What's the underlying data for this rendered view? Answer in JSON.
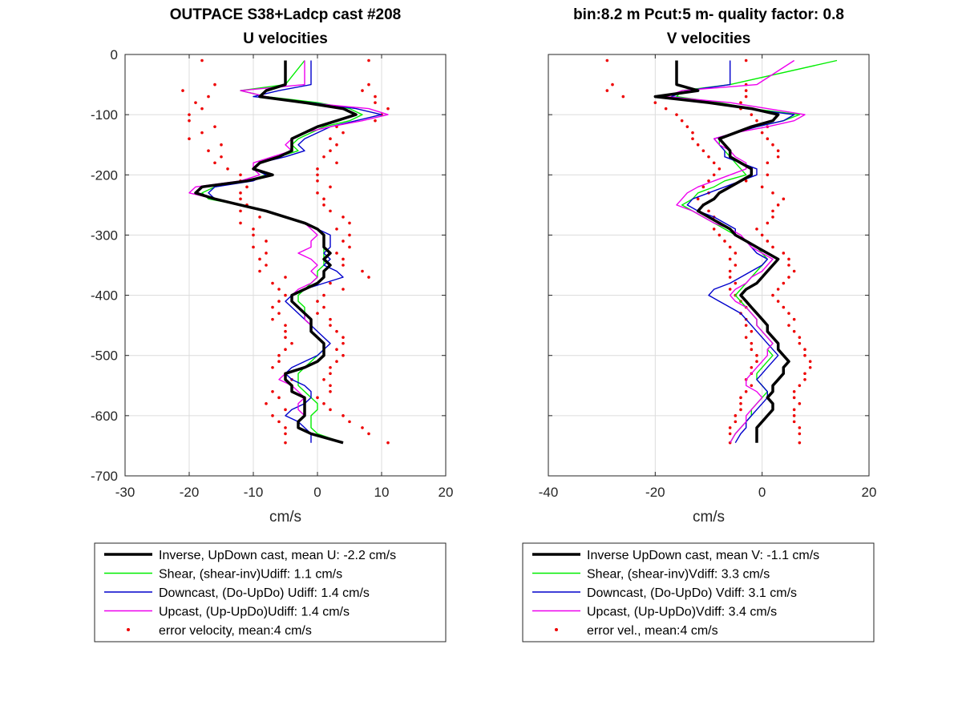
{
  "colors": {
    "inverse": "#000000",
    "shear": "#00ee00",
    "downcast": "#0000cc",
    "upcast": "#ee00ee",
    "error": "#ee0000"
  },
  "chart_data": [
    {
      "type": "line",
      "title": "OUTPACE S38+Ladcp cast #208",
      "subtitle": "U velocities",
      "xlabel": "cm/s",
      "ylabel": "",
      "xlim": [
        -30,
        20
      ],
      "ylim": [
        -700,
        0
      ],
      "xticks": [
        "-30",
        "-20",
        "-10",
        "0",
        "10",
        "20"
      ],
      "yticks": [
        "0",
        "-100",
        "-200",
        "-300",
        "-400",
        "-500",
        "-600",
        "-700"
      ],
      "grid": true,
      "legend_position": "bottom",
      "legend": [
        "Inverse, UpDown cast, mean U:  -2.2 cm/s",
        "Shear, (shear-inv)Udiff:  1.1 cm/s",
        "Downcast, (Do-UpDo) Udiff:  1.4 cm/s",
        "Upcast, (Up-UpDo)Udiff:  1.4 cm/s",
        "error velocity, mean:4 cm/s"
      ],
      "depth": [
        -10,
        -50,
        -60,
        -70,
        -80,
        -90,
        -100,
        -110,
        -120,
        -130,
        -140,
        -150,
        -160,
        -170,
        -180,
        -190,
        -200,
        -210,
        -220,
        -230,
        -240,
        -250,
        -260,
        -270,
        -280,
        -290,
        -300,
        -310,
        -320,
        -330,
        -340,
        -350,
        -360,
        -370,
        -380,
        -390,
        -400,
        -410,
        -420,
        -430,
        -440,
        -450,
        -460,
        -470,
        -480,
        -490,
        -500,
        -510,
        -520,
        -530,
        -540,
        -550,
        -560,
        -570,
        -580,
        -590,
        -600,
        -610,
        -620,
        -630,
        -645
      ],
      "series": [
        {
          "name": "Inverse",
          "x": [
            -5,
            -5,
            -8,
            -9,
            -2,
            4,
            6,
            3,
            0,
            -2,
            -4,
            -4,
            -4,
            -6,
            -9,
            -10,
            -7,
            -11,
            -18,
            -19,
            -16,
            -12,
            -8,
            -5,
            -2,
            0,
            1,
            1,
            1,
            2,
            1,
            2,
            1,
            1,
            0,
            -2,
            -4,
            -4,
            -3,
            -2,
            -1,
            -1,
            -1,
            0,
            1,
            1,
            1,
            0,
            -2,
            -5,
            -5,
            -4,
            -4,
            -2,
            -2,
            -2,
            -2,
            -3,
            -3,
            -1,
            4
          ]
        },
        {
          "name": "Shear",
          "x": [
            -2,
            -5,
            -12,
            -8,
            0,
            5,
            7,
            5,
            1,
            -1,
            -3,
            -4,
            -3,
            -6,
            -9,
            -10,
            -8,
            -11,
            -16,
            -18,
            -17,
            -12,
            -8,
            -5,
            -2,
            0,
            1,
            1,
            1,
            1,
            1,
            1,
            0,
            0,
            -1,
            -2,
            -3,
            -3,
            -2,
            -2,
            -2,
            -1,
            -1,
            0,
            1,
            1,
            0,
            -1,
            -2,
            -3,
            -3,
            -3,
            -2,
            -1,
            0,
            0,
            -1,
            -1,
            -1,
            0,
            4
          ]
        },
        {
          "name": "Downcast",
          "x": [
            -1,
            -1,
            -6,
            -10,
            -1,
            6,
            10,
            6,
            2,
            0,
            -2,
            -3,
            -2,
            -5,
            -9,
            -10,
            -8,
            -10,
            -16,
            -17,
            -16,
            -12,
            -8,
            -5,
            -2,
            0,
            2,
            2,
            2,
            1,
            2,
            1,
            3,
            4,
            1,
            -2,
            -4,
            -5,
            -4,
            -3,
            -2,
            -1,
            0,
            1,
            2,
            1,
            0,
            -2,
            -4,
            -5,
            -4,
            -2,
            -1,
            -1,
            -2,
            -4,
            -5,
            -3,
            -2,
            -1,
            -1
          ]
        },
        {
          "name": "Upcast",
          "x": [
            -2,
            -2,
            -12,
            -8,
            -2,
            8,
            11,
            7,
            2,
            -2,
            -4,
            -5,
            -4,
            -7,
            -10,
            -10,
            -9,
            -12,
            -19,
            -20,
            -16,
            -12,
            -8,
            -5,
            -2,
            -1,
            0,
            -1,
            -1,
            -3,
            -1,
            0,
            -1,
            0,
            -1,
            -3,
            -4,
            -4,
            -3,
            -2,
            -2,
            -1,
            -1,
            0,
            1,
            1,
            1,
            0,
            -2,
            -5,
            -6,
            -4,
            -3,
            -2,
            -3,
            -3,
            -2,
            -3,
            -3,
            -1,
            4
          ]
        }
      ],
      "error_x": [
        [
          -18,
          -16,
          -21,
          -17,
          -19,
          -18,
          -20,
          -20,
          -16,
          -18,
          -20,
          -15,
          -17,
          -15,
          -16,
          -14,
          -12,
          -12,
          -11,
          -12,
          -12,
          -11,
          -12,
          -9,
          -12,
          -10,
          -10,
          -8,
          -10,
          -8,
          -9,
          -8,
          -9,
          -5,
          -7,
          -6,
          -5,
          -6,
          -7,
          -6,
          -7,
          -5,
          -5,
          -5,
          -4,
          -5,
          -6,
          -6,
          -7,
          -5,
          -4,
          -4,
          -7,
          -6,
          -8,
          -5,
          -7,
          -6,
          -5,
          -5,
          -5
        ],
        [
          8,
          8,
          7,
          9,
          9,
          11,
          10,
          9,
          3,
          4,
          2,
          3,
          2,
          1,
          3,
          0,
          0,
          0,
          2,
          0,
          1,
          1,
          2,
          4,
          5,
          3,
          5,
          4,
          5,
          3,
          4,
          4,
          7,
          8,
          2,
          4,
          1,
          0,
          1,
          0,
          2,
          2,
          3,
          4,
          4,
          3,
          4,
          3,
          2,
          2,
          1,
          2,
          2,
          0,
          1,
          2,
          4,
          5,
          7,
          8,
          11
        ]
      ]
    },
    {
      "type": "line",
      "title": "bin:8.2 m  Pcut:5 m- quality factor:  0.8",
      "subtitle": "V velocities",
      "xlabel": "cm/s",
      "ylabel": "",
      "xlim": [
        -40,
        20
      ],
      "ylim": [
        -700,
        0
      ],
      "xticks": [
        "-40",
        "-20",
        "0",
        "20"
      ],
      "yticks": [],
      "grid": true,
      "legend_position": "bottom",
      "legend": [
        "Inverse UpDown cast, mean V:  -1.1 cm/s",
        "Shear, (shear-inv)Vdiff:  3.3 cm/s",
        "Downcast, (Do-UpDo) Vdiff:  3.1 cm/s",
        "Upcast, (Up-UpDo)Vdiff:  3.4 cm/s",
        "error vel., mean:4 cm/s"
      ],
      "depth": [
        -10,
        -50,
        -60,
        -70,
        -80,
        -90,
        -100,
        -110,
        -120,
        -130,
        -140,
        -150,
        -160,
        -170,
        -180,
        -190,
        -200,
        -210,
        -220,
        -230,
        -240,
        -250,
        -260,
        -270,
        -280,
        -290,
        -300,
        -310,
        -320,
        -330,
        -340,
        -350,
        -360,
        -370,
        -380,
        -390,
        -400,
        -410,
        -420,
        -430,
        -440,
        -450,
        -460,
        -470,
        -480,
        -490,
        -500,
        -510,
        -520,
        -530,
        -540,
        -550,
        -560,
        -570,
        -580,
        -590,
        -600,
        -610,
        -620,
        -630,
        -645
      ],
      "series": [
        {
          "name": "Inverse",
          "x": [
            -16,
            -16,
            -12,
            -20,
            -10,
            -2,
            3,
            2,
            -2,
            -5,
            -8,
            -7,
            -6,
            -6,
            -4,
            -2,
            -2,
            -4,
            -6,
            -8,
            -9,
            -11,
            -12,
            -10,
            -8,
            -6,
            -5,
            -3,
            -1,
            1,
            3,
            2,
            1,
            0,
            -1,
            -3,
            -4,
            -3,
            -2,
            -1,
            0,
            1,
            1,
            2,
            3,
            3,
            4,
            5,
            4,
            4,
            3,
            2,
            2,
            1,
            2,
            2,
            1,
            0,
            -1,
            -1,
            -1
          ]
        },
        {
          "name": "Shear",
          "x": [
            14,
            -6,
            -15,
            -16,
            -8,
            -2,
            7,
            4,
            -1,
            -5,
            -8,
            -8,
            -7,
            -6,
            -5,
            -4,
            -3,
            -7,
            -9,
            -12,
            -13,
            -15,
            -13,
            -11,
            -9,
            -7,
            -5,
            -3,
            -1,
            0,
            1,
            0,
            -1,
            -2,
            -3,
            -4,
            -5,
            -4,
            -3,
            -2,
            -1,
            -1,
            0,
            1,
            2,
            1,
            2,
            1,
            0,
            -1,
            -1,
            0,
            1,
            0,
            -1,
            -2,
            -2,
            -3,
            -4,
            -5,
            -6
          ]
        },
        {
          "name": "Downcast",
          "x": [
            -6,
            -6,
            -14,
            -17,
            -9,
            -3,
            6,
            4,
            -1,
            -5,
            -9,
            -8,
            -7,
            -7,
            -4,
            -1,
            -1,
            -4,
            -7,
            -10,
            -13,
            -14,
            -12,
            -9,
            -7,
            -5,
            -5,
            -3,
            -2,
            -1,
            1,
            0,
            -2,
            -4,
            -6,
            -9,
            -10,
            -8,
            -6,
            -4,
            -3,
            -2,
            -1,
            0,
            1,
            2,
            3,
            2,
            1,
            0,
            -1,
            0,
            1,
            1,
            0,
            -1,
            -2,
            -3,
            -3,
            -4,
            -5
          ]
        },
        {
          "name": "Upcast",
          "x": [
            6,
            -1,
            -15,
            -18,
            -6,
            1,
            8,
            6,
            1,
            -5,
            -9,
            -8,
            -6,
            -5,
            -3,
            -3,
            -6,
            -9,
            -12,
            -14,
            -15,
            -16,
            -13,
            -11,
            -9,
            -6,
            -4,
            -3,
            -2,
            0,
            2,
            1,
            0,
            -2,
            -3,
            -5,
            -6,
            -5,
            -3,
            -2,
            -1,
            -1,
            0,
            1,
            2,
            1,
            1,
            0,
            -1,
            -2,
            -3,
            -3,
            -1,
            0,
            -1,
            -2,
            -3,
            -3,
            -4,
            -5,
            -6
          ]
        }
      ],
      "error_x": [
        [
          -29,
          -28,
          -29,
          -26,
          -20,
          -18,
          -16,
          -15,
          -14,
          -13,
          -13,
          -12,
          -11,
          -10,
          -9,
          -8,
          -9,
          -10,
          -11,
          -10,
          -12,
          -11,
          -10,
          -9,
          -8,
          -9,
          -8,
          -7,
          -6,
          -5,
          -6,
          -5,
          -6,
          -6,
          -5,
          -6,
          -5,
          -4,
          -3,
          -4,
          -3,
          -3,
          -2,
          -3,
          -2,
          -2,
          -1,
          -1,
          -2,
          -2,
          -3,
          -2,
          -3,
          -4,
          -4,
          -4,
          -5,
          -5,
          -6,
          -6,
          -6
        ],
        [
          -3,
          -3,
          -3,
          -3,
          -4,
          -4,
          -2,
          -1,
          1,
          0,
          1,
          2,
          3,
          3,
          1,
          -2,
          1,
          -3,
          0,
          2,
          4,
          3,
          2,
          2,
          1,
          -1,
          0,
          1,
          2,
          4,
          5,
          5,
          6,
          5,
          4,
          3,
          2,
          3,
          4,
          5,
          6,
          5,
          6,
          7,
          7,
          8,
          8,
          9,
          9,
          8,
          8,
          7,
          6,
          6,
          7,
          6,
          6,
          6,
          7,
          7,
          7
        ]
      ]
    }
  ]
}
